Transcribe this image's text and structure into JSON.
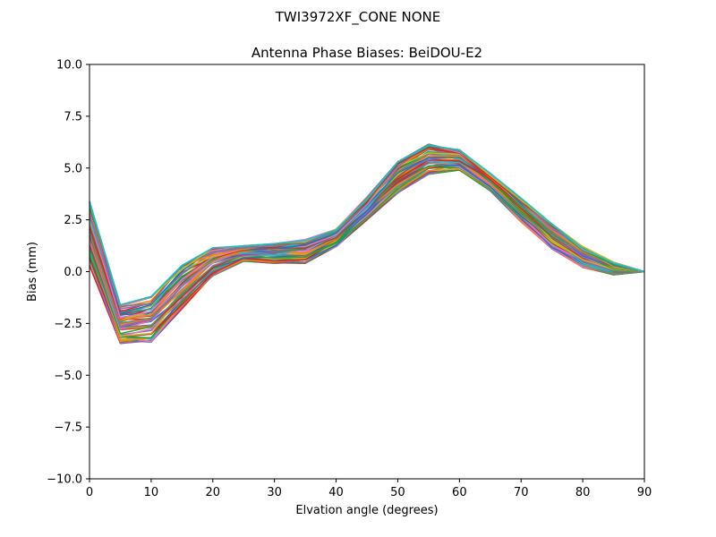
{
  "chart_data": {
    "type": "line",
    "suptitle": "TWI3972XF_CONE  NONE",
    "title": "Antenna Phase Biases: BeiDOU-E2",
    "xlabel": "Elvation angle (degrees)",
    "ylabel": "Bias (mm)",
    "xlim": [
      0,
      90
    ],
    "ylim": [
      -10,
      10
    ],
    "x": [
      0,
      5,
      10,
      15,
      20,
      25,
      30,
      35,
      40,
      45,
      50,
      55,
      60,
      65,
      70,
      75,
      80,
      85,
      90
    ],
    "xticks": [
      "0",
      "10",
      "20",
      "30",
      "40",
      "50",
      "60",
      "70",
      "80",
      "90"
    ],
    "yticks": [
      "−10.0",
      "−7.5",
      "−5.0",
      "−2.5",
      "0.0",
      "2.5",
      "5.0",
      "7.5",
      "10.0"
    ],
    "xtick_values": [
      0,
      10,
      20,
      30,
      40,
      50,
      60,
      70,
      80,
      90
    ],
    "ytick_values": [
      -10,
      -7.5,
      -5,
      -2.5,
      0,
      2.5,
      5,
      7.5,
      10
    ],
    "grid": false,
    "legend": "none",
    "colors": [
      "#1f77b4",
      "#ff7f0e",
      "#2ca02c",
      "#d62728",
      "#9467bd",
      "#8c564b",
      "#e377c2",
      "#7f7f7f",
      "#bcbd22",
      "#17becf"
    ],
    "envelope_low": [
      0.3,
      -3.5,
      -3.4,
      -1.8,
      -0.2,
      0.5,
      0.4,
      0.4,
      1.2,
      2.5,
      3.8,
      4.7,
      4.9,
      3.9,
      2.4,
      1.1,
      0.2,
      -0.15,
      0.0
    ],
    "envelope_high": [
      3.4,
      -1.6,
      -1.2,
      0.3,
      1.15,
      1.25,
      1.35,
      1.55,
      2.05,
      3.6,
      5.3,
      6.15,
      5.9,
      4.75,
      3.55,
      2.3,
      1.2,
      0.45,
      0.0
    ],
    "series_count": 60
  }
}
